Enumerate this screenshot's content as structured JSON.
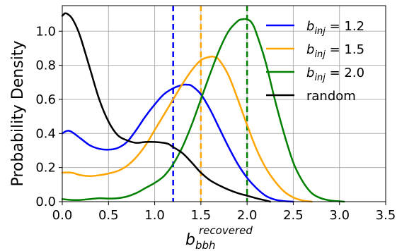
{
  "chart_data": {
    "type": "line",
    "title": "",
    "ylabel": "Probability Density",
    "xlabel": {
      "base": "b",
      "subscript": "bbh",
      "superscript": "recovered"
    },
    "xlim": [
      0.0,
      3.5
    ],
    "ylim": [
      0.0,
      1.15
    ],
    "xticks": [
      "0.0",
      "0.5",
      "1.0",
      "1.5",
      "2.0",
      "2.5",
      "3.0",
      "3.5"
    ],
    "yticks": [
      "0.0",
      "0.2",
      "0.4",
      "0.6",
      "0.8",
      "1.0"
    ],
    "xtick_values": [
      0.0,
      0.5,
      1.0,
      1.5,
      2.0,
      2.5,
      3.0,
      3.5
    ],
    "ytick_values": [
      0.0,
      0.2,
      0.4,
      0.6,
      0.8,
      1.0
    ],
    "grid": true,
    "legend_position": "upper-right",
    "series": [
      {
        "label_base": "b",
        "label_sub": "inj",
        "label_value": "= 1.2",
        "color": "#0000ff",
        "x": [
          0.0,
          0.05,
          0.1,
          0.2,
          0.3,
          0.4,
          0.5,
          0.6,
          0.7,
          0.8,
          0.9,
          1.0,
          1.1,
          1.2,
          1.3,
          1.35,
          1.4,
          1.5,
          1.6,
          1.7,
          1.8,
          1.9,
          2.0,
          2.1,
          2.2,
          2.3,
          2.4,
          2.5
        ],
        "y": [
          0.4,
          0.415,
          0.41,
          0.37,
          0.33,
          0.31,
          0.305,
          0.315,
          0.35,
          0.42,
          0.5,
          0.57,
          0.63,
          0.665,
          0.685,
          0.686,
          0.68,
          0.63,
          0.54,
          0.43,
          0.32,
          0.22,
          0.14,
          0.08,
          0.035,
          0.012,
          0.003,
          0.0
        ]
      },
      {
        "label_base": "b",
        "label_sub": "inj",
        "label_value": "= 1.5",
        "color": "#ffa500",
        "x": [
          0.0,
          0.1,
          0.2,
          0.3,
          0.4,
          0.5,
          0.6,
          0.7,
          0.8,
          0.9,
          1.0,
          1.1,
          1.2,
          1.3,
          1.4,
          1.5,
          1.6,
          1.65,
          1.7,
          1.8,
          1.9,
          2.0,
          2.1,
          2.2,
          2.3,
          2.4,
          2.5,
          2.6,
          2.7
        ],
        "y": [
          0.17,
          0.17,
          0.155,
          0.15,
          0.155,
          0.165,
          0.18,
          0.21,
          0.26,
          0.33,
          0.42,
          0.51,
          0.6,
          0.69,
          0.77,
          0.83,
          0.85,
          0.848,
          0.83,
          0.74,
          0.6,
          0.45,
          0.31,
          0.2,
          0.12,
          0.06,
          0.025,
          0.007,
          0.0
        ]
      },
      {
        "label_base": "b",
        "label_sub": "inj",
        "label_value": "= 2.0",
        "color": "#008000",
        "x": [
          0.0,
          0.1,
          0.2,
          0.3,
          0.4,
          0.5,
          0.6,
          0.7,
          0.8,
          0.9,
          1.0,
          1.1,
          1.2,
          1.3,
          1.4,
          1.5,
          1.6,
          1.7,
          1.8,
          1.9,
          1.95,
          2.0,
          2.05,
          2.1,
          2.2,
          2.3,
          2.4,
          2.5,
          2.6,
          2.7,
          2.8,
          2.9,
          3.0,
          3.05
        ],
        "y": [
          0.015,
          0.01,
          0.01,
          0.015,
          0.02,
          0.018,
          0.02,
          0.03,
          0.05,
          0.08,
          0.11,
          0.15,
          0.22,
          0.32,
          0.45,
          0.6,
          0.75,
          0.89,
          1.0,
          1.06,
          1.07,
          1.07,
          1.05,
          0.99,
          0.82,
          0.6,
          0.4,
          0.23,
          0.12,
          0.05,
          0.02,
          0.007,
          0.002,
          0.0
        ]
      },
      {
        "label_base": "",
        "label_sub": "",
        "label_value": "random",
        "color": "#000000",
        "x": [
          0.0,
          0.03,
          0.06,
          0.1,
          0.15,
          0.2,
          0.3,
          0.4,
          0.5,
          0.6,
          0.7,
          0.8,
          0.9,
          1.0,
          1.1,
          1.15,
          1.2,
          1.3,
          1.4,
          1.5,
          1.6,
          1.7,
          1.8,
          1.9,
          2.0,
          2.1,
          2.2,
          2.25
        ],
        "y": [
          1.09,
          1.105,
          1.1,
          1.08,
          1.03,
          0.96,
          0.78,
          0.6,
          0.47,
          0.39,
          0.36,
          0.345,
          0.35,
          0.35,
          0.345,
          0.338,
          0.32,
          0.285,
          0.23,
          0.17,
          0.125,
          0.095,
          0.07,
          0.05,
          0.035,
          0.02,
          0.007,
          0.0
        ]
      }
    ],
    "vlines": [
      {
        "x": 1.2,
        "color": "#0000ff",
        "style": "dashed"
      },
      {
        "x": 1.5,
        "color": "#ffa500",
        "style": "dashed"
      },
      {
        "x": 2.0,
        "color": "#008000",
        "style": "dashed"
      }
    ]
  }
}
